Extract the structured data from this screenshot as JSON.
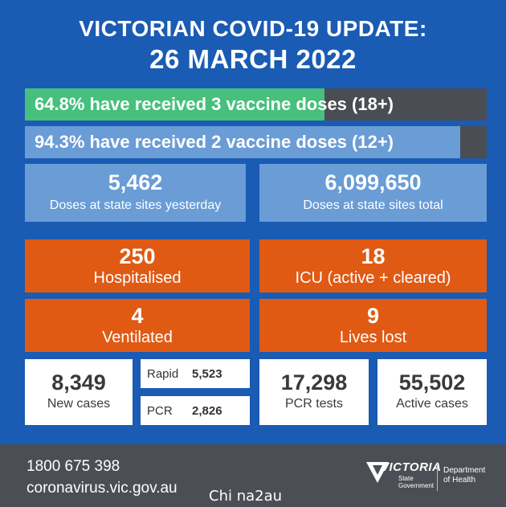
{
  "header": {
    "title": "VICTORIAN COVID-19 UPDATE:",
    "date": "26 MARCH 2022"
  },
  "vaccination": {
    "three_doses": {
      "label": "64.8% have received 3 vaccine doses (18+)",
      "percent": 64.8,
      "color": "#46c07c"
    },
    "two_doses": {
      "label": "94.3% have received 2 vaccine doses (12+)",
      "percent": 94.3,
      "color": "#6a9cd6"
    }
  },
  "doses": {
    "yesterday": {
      "value": "5,462",
      "label": "Doses at state sites yesterday"
    },
    "total": {
      "value": "6,099,650",
      "label": "Doses at state sites total"
    }
  },
  "hospital": {
    "hospitalised": {
      "value": "250",
      "label": "Hospitalised"
    },
    "icu": {
      "value": "18",
      "label": "ICU (active + cleared)"
    },
    "ventilated": {
      "value": "4",
      "label": "Ventilated"
    },
    "lives_lost": {
      "value": "9",
      "label": "Lives lost"
    }
  },
  "cases": {
    "new_cases": {
      "value": "8,349",
      "label": "New cases"
    },
    "rapid": {
      "label": "Rapid",
      "value": "5,523"
    },
    "pcr": {
      "label": "PCR",
      "value": "2,826"
    },
    "pcr_tests": {
      "value": "17,298",
      "label": "PCR tests"
    },
    "active_cases": {
      "value": "55,502",
      "label": "Active cases"
    }
  },
  "footer": {
    "phone": "1800 675 398",
    "website": "coronavirus.vic.gov.au",
    "watermark": "Chi na2au",
    "logo_word": "VICTORIA",
    "logo_sub_1": "State",
    "logo_sub_2": "Government",
    "department_1": "Department",
    "department_2": "of Health"
  },
  "colors": {
    "panel": "#1a5bb3",
    "orange": "#e05a14",
    "light_blue": "#6a9cd6",
    "green": "#46c07c",
    "footer": "#4b4f55"
  }
}
